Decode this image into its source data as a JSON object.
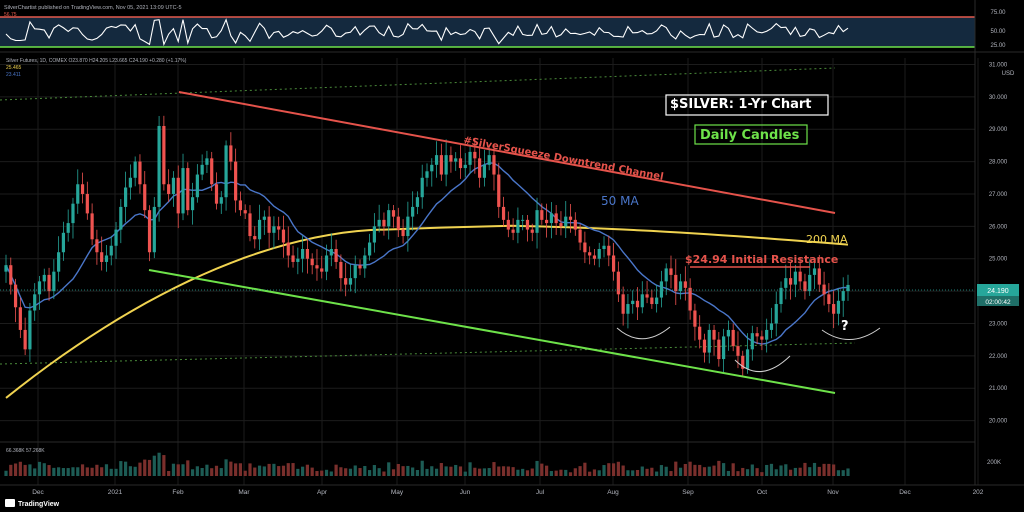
{
  "header": {
    "publisher": "SilverChartist published on TradingView.com, Nov 05, 2021 13:09 UTC-5"
  },
  "rsi": {
    "value_label": "56.75",
    "ticks": [
      "75.00",
      "50.00",
      "25.00"
    ]
  },
  "legend": {
    "symbol_line": "Silver Futures, 1D, COMEX O23.870 H24.205 L23.665 C24.190 +0.280 (+1.17%)",
    "ma_slow_value": "25.465",
    "ma_fast_value": "23.411"
  },
  "annotations": {
    "title": "$SILVER: 1-Yr Chart",
    "subtitle": "Daily Candles",
    "channel_label": "#SilverSqueeze Downtrend Channel",
    "ma50_label": "50 MA",
    "ma200_label": "200 MA",
    "resistance_label": "$24.94 Initial Resistance",
    "question_mark": "?",
    "price_badge": "02:00:42"
  },
  "volume": {
    "label_left": "66.368K  57.268K",
    "axis_tick": "200K"
  },
  "footer": {
    "brand": "TradingView"
  },
  "colors": {
    "background": "#000000",
    "grid": "#1c1c1c",
    "candle_up": "#26a69a",
    "candle_down": "#ef5350",
    "ma50": "#4a76c9",
    "ma200": "#f0d350",
    "channel_top": "#e5534b",
    "channel_bottom": "#6ee24a",
    "rsi_line": "#ffffff",
    "rsi_band": "#1a2f44"
  },
  "chart_data": {
    "type": "candlestick",
    "title": "$SILVER: 1-Yr Chart",
    "subtitle": "Daily Candles",
    "y_axis": [
      "31.000",
      "30.000",
      "29.000",
      "28.000",
      "27.000",
      "26.000",
      "25.000",
      "24.000",
      "23.000",
      "22.000",
      "21.000",
      "20.000"
    ],
    "y_unit": "USD",
    "ylim": [
      19.4,
      31.2
    ],
    "x_axis": [
      "Dec",
      "2021",
      "Feb",
      "Mar",
      "Apr",
      "May",
      "Jun",
      "Jul",
      "Aug",
      "Sep",
      "Oct",
      "Nov",
      "Dec",
      "202"
    ],
    "last_price": "24.190",
    "close_series": [
      24.8,
      24.2,
      23.5,
      22.8,
      22.2,
      23.4,
      23.9,
      24.3,
      24.5,
      24.0,
      24.6,
      25.2,
      25.8,
      26.1,
      26.7,
      27.3,
      27.0,
      26.4,
      25.6,
      25.2,
      24.9,
      25.1,
      25.4,
      25.9,
      26.6,
      27.2,
      27.5,
      28.0,
      27.3,
      26.5,
      25.2,
      26.6,
      29.1,
      27.3,
      27.0,
      27.5,
      26.4,
      27.8,
      26.5,
      26.9,
      27.6,
      27.9,
      28.1,
      27.3,
      26.7,
      26.9,
      28.5,
      28.0,
      26.8,
      26.5,
      26.4,
      25.7,
      25.6,
      26.2,
      26.3,
      25.8,
      26.0,
      25.9,
      25.5,
      25.1,
      24.9,
      25.0,
      25.3,
      25.0,
      24.8,
      24.7,
      24.6,
      25.1,
      25.3,
      24.9,
      24.4,
      24.2,
      24.4,
      24.8,
      24.7,
      25.1,
      25.5,
      26.0,
      26.2,
      26.0,
      26.5,
      26.3,
      25.9,
      25.7,
      26.3,
      26.6,
      26.9,
      27.5,
      27.7,
      27.9,
      28.2,
      27.6,
      28.2,
      28.0,
      28.1,
      27.8,
      27.9,
      28.3,
      28.1,
      27.5,
      27.9,
      28.2,
      27.6,
      26.6,
      26.2,
      25.9,
      25.8,
      26.2,
      26.2,
      25.9,
      25.8,
      26.5,
      26.2,
      26.1,
      26.4,
      26.1,
      26.0,
      26.3,
      26.2,
      25.9,
      25.5,
      25.2,
      25.1,
      25.0,
      25.3,
      25.4,
      25.1,
      24.6,
      23.9,
      23.3,
      23.6,
      23.7,
      23.5,
      23.9,
      23.8,
      23.6,
      23.8,
      24.3,
      24.7,
      24.5,
      24.0,
      24.3,
      24.1,
      23.4,
      22.9,
      22.5,
      22.1,
      22.8,
      22.5,
      21.9,
      22.6,
      22.8,
      22.3,
      22.0,
      21.6,
      22.2,
      22.7,
      22.6,
      22.5,
      22.8,
      23.0,
      23.6,
      24.1,
      24.4,
      24.2,
      24.6,
      24.3,
      24.0,
      24.5,
      24.7,
      24.2,
      23.9,
      23.6,
      23.3,
      23.7,
      24.0,
      24.19
    ]
  }
}
